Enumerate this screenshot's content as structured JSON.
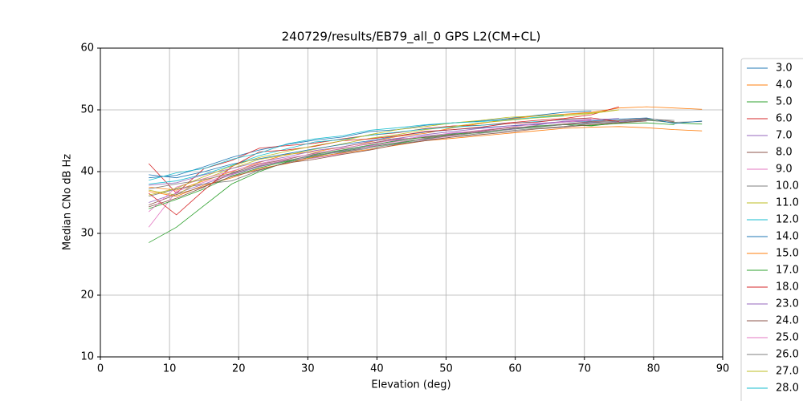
{
  "chart_data": {
    "type": "line",
    "title": "240729/results/EB79_all_0 GPS L2(CM+CL)",
    "x_label": "Elevation (deg)",
    "y_label": "Median CNo dB Hz",
    "xlim": [
      0,
      90
    ],
    "xticks": [
      0,
      10,
      20,
      30,
      40,
      50,
      60,
      70,
      80,
      90
    ],
    "ylim": [
      10,
      60
    ],
    "yticks": [
      10,
      20,
      30,
      40,
      50,
      60
    ],
    "grid": true,
    "legend": "outside right",
    "x": [
      7,
      11,
      15,
      19,
      23,
      27,
      31,
      35,
      39,
      43,
      47,
      51,
      55,
      59,
      63,
      67,
      71,
      75,
      79,
      83,
      87
    ],
    "series": [
      {
        "name": "3.0",
        "color": "#1f77b4",
        "values": [
          39.0,
          39.4,
          40.8,
          42.3,
          43.5,
          44.4,
          45.1,
          45.6,
          46.5,
          46.8,
          47.5,
          47.9,
          48.2,
          48.6,
          49.1,
          49.6,
          49.8,
          null,
          null,
          null,
          null
        ]
      },
      {
        "name": "4.0",
        "color": "#ff7f0e",
        "values": [
          37.5,
          37.0,
          38.5,
          40.0,
          41.5,
          42.8,
          43.2,
          44.0,
          44.8,
          45.7,
          46.2,
          47.1,
          47.8,
          48.5,
          49.0,
          49.3,
          49.6,
          50.3,
          50.5,
          50.3,
          50.1
        ]
      },
      {
        "name": "5.0",
        "color": "#2ca02c",
        "values": [
          28.5,
          31.0,
          34.5,
          38.0,
          40.0,
          41.6,
          42.5,
          43.3,
          44.0,
          44.6,
          45.3,
          45.8,
          46.4,
          46.8,
          47.2,
          47.6,
          47.4,
          47.9,
          48.4,
          47.9,
          47.7
        ]
      },
      {
        "name": "6.0",
        "color": "#d62728",
        "values": [
          41.3,
          36.5,
          40.5,
          41.8,
          43.8,
          44.2,
          44.6,
          45.3,
          45.9,
          46.3,
          47.0,
          47.4,
          47.5,
          47.9,
          48.3,
          48.6,
          49.2,
          50.5,
          null,
          null,
          null
        ]
      },
      {
        "name": "7.0",
        "color": "#9467bd",
        "values": [
          35.0,
          36.5,
          38.0,
          39.5,
          40.8,
          41.8,
          42.6,
          43.4,
          44.2,
          45.1,
          45.8,
          46.2,
          46.5,
          46.8,
          47.3,
          47.6,
          48.0,
          48.1,
          48.4,
          null,
          null
        ]
      },
      {
        "name": "8.0",
        "color": "#8c564b",
        "values": [
          34.3,
          35.7,
          37.5,
          39.8,
          41.2,
          42.0,
          43.0,
          43.7,
          44.6,
          45.3,
          45.5,
          46.0,
          46.6,
          47.1,
          47.3,
          47.7,
          48.1,
          48.3,
          48.6,
          48.1,
          null
        ]
      },
      {
        "name": "9.0",
        "color": "#e377c2",
        "values": [
          31.0,
          36.8,
          38.3,
          39.6,
          41.0,
          41.9,
          42.2,
          42.9,
          44.1,
          44.9,
          45.2,
          45.8,
          46.5,
          46.9,
          47.5,
          48.2,
          48.5,
          null,
          null,
          null,
          null
        ]
      },
      {
        "name": "10.0",
        "color": "#7f7f7f",
        "values": [
          36.0,
          37.2,
          38.0,
          38.5,
          40.2,
          41.5,
          42.3,
          43.1,
          43.8,
          44.5,
          45.1,
          45.6,
          46.2,
          46.6,
          47.0,
          47.3,
          47.8,
          48.0,
          48.3,
          48.0,
          48.1
        ]
      },
      {
        "name": "11.0",
        "color": "#bcbd22",
        "values": [
          37.0,
          36.2,
          38.8,
          40.5,
          42.0,
          42.7,
          43.6,
          44.5,
          45.4,
          46.0,
          46.8,
          47.3,
          47.9,
          48.3,
          48.7,
          49.0,
          49.4,
          50.0,
          null,
          null,
          null
        ]
      },
      {
        "name": "12.0",
        "color": "#17becf",
        "values": [
          38.0,
          38.5,
          39.6,
          41.0,
          42.6,
          43.7,
          44.8,
          45.2,
          45.9,
          46.4,
          46.9,
          47.2,
          47.5,
          47.8,
          48.1,
          48.4,
          48.7,
          null,
          null,
          null,
          null
        ]
      },
      {
        "name": "14.0",
        "color": "#1f77b4",
        "values": [
          39.5,
          39.0,
          40.0,
          41.2,
          42.1,
          42.9,
          43.7,
          44.4,
          45.0,
          45.8,
          46.4,
          46.8,
          47.1,
          47.4,
          47.6,
          48.0,
          48.2,
          48.5,
          48.7,
          47.8,
          48.2
        ]
      },
      {
        "name": "15.0",
        "color": "#ff7f0e",
        "values": [
          36.8,
          36.0,
          37.8,
          39.0,
          40.5,
          41.3,
          42.4,
          43.0,
          43.6,
          44.3,
          45.0,
          45.4,
          45.8,
          46.2,
          46.6,
          47.0,
          47.2,
          47.3,
          47.1,
          46.8,
          46.6
        ]
      },
      {
        "name": "17.0",
        "color": "#2ca02c",
        "values": [
          34.0,
          35.5,
          37.2,
          39.3,
          40.6,
          41.7,
          42.8,
          43.5,
          44.3,
          45.0,
          45.6,
          46.1,
          46.3,
          46.9,
          47.4,
          47.6,
          47.5,
          47.8,
          47.9,
          47.6,
          null
        ]
      },
      {
        "name": "18.0",
        "color": "#d62728",
        "values": [
          36.5,
          33.0,
          37.0,
          40.8,
          43.2,
          43.5,
          44.1,
          45.0,
          45.3,
          45.8,
          46.5,
          46.8,
          47.2,
          47.8,
          48.0,
          48.5,
          48.7,
          48.1,
          null,
          null,
          null
        ]
      },
      {
        "name": "23.0",
        "color": "#9467bd",
        "values": [
          37.8,
          38.2,
          39.5,
          40.5,
          41.6,
          42.4,
          43.4,
          44.0,
          44.9,
          45.4,
          46.0,
          46.5,
          47.0,
          47.4,
          47.8,
          48.1,
          48.4,
          48.6,
          null,
          null,
          null
        ]
      },
      {
        "name": "24.0",
        "color": "#8c564b",
        "values": [
          34.6,
          36.3,
          37.6,
          39.2,
          40.3,
          41.4,
          42.0,
          42.8,
          43.5,
          44.4,
          45.0,
          45.6,
          46.0,
          46.4,
          46.9,
          47.2,
          47.6,
          47.9,
          48.2,
          null,
          null
        ]
      },
      {
        "name": "25.0",
        "color": "#e377c2",
        "values": [
          33.5,
          37.5,
          38.9,
          40.1,
          41.3,
          42.2,
          42.9,
          43.8,
          44.5,
          45.2,
          45.7,
          46.3,
          46.7,
          47.2,
          47.7,
          48.0,
          48.3,
          null,
          null,
          null,
          null
        ]
      },
      {
        "name": "26.0",
        "color": "#7f7f7f",
        "values": [
          37.2,
          38.0,
          38.7,
          39.7,
          40.9,
          41.8,
          42.7,
          43.2,
          44.0,
          44.7,
          45.4,
          45.9,
          46.4,
          46.9,
          47.3,
          47.6,
          47.9,
          48.2,
          48.5,
          48.3,
          null
        ]
      },
      {
        "name": "27.0",
        "color": "#bcbd22",
        "values": [
          36.2,
          37.3,
          39.2,
          40.9,
          42.3,
          43.3,
          44.2,
          45.0,
          46.0,
          46.8,
          47.3,
          47.9,
          48.3,
          48.8,
          49.0,
          49.2,
          49.5,
          50.0,
          null,
          null,
          null
        ]
      },
      {
        "name": "28.0",
        "color": "#17becf",
        "values": [
          38.6,
          39.8,
          40.5,
          42.0,
          43.0,
          44.5,
          45.3,
          45.8,
          46.7,
          47.1,
          47.6,
          47.9,
          48.1,
          48.4,
          48.8,
          49.1,
          null,
          null,
          null,
          null,
          null
        ]
      }
    ]
  }
}
